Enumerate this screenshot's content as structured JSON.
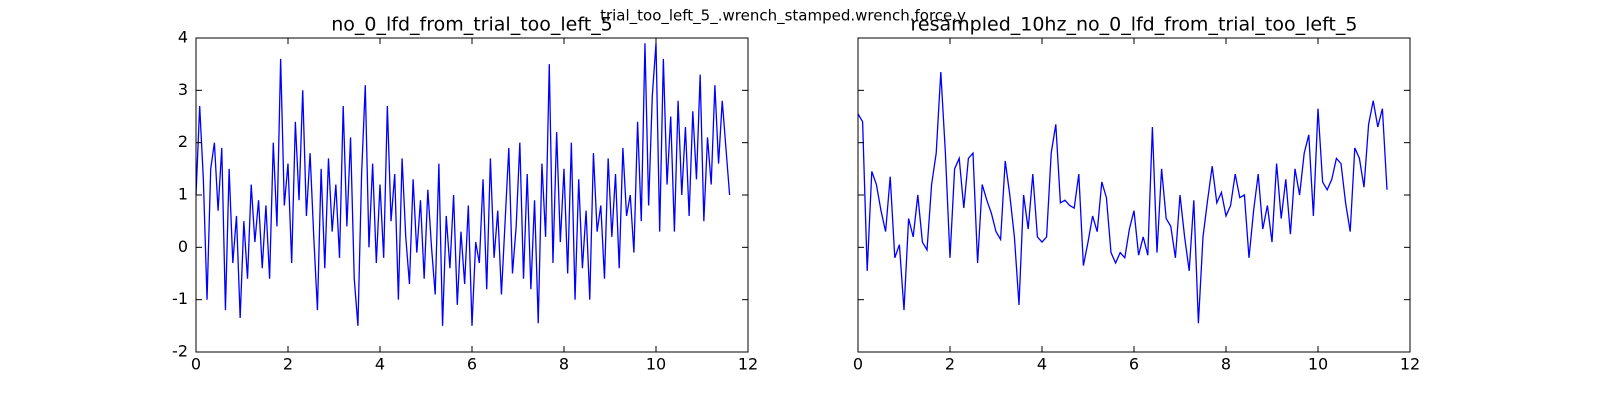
{
  "suptitle": "trial_too_left_5_.wrench_stamped.wrench.force.y",
  "chart_data": [
    {
      "type": "line",
      "title": "no_0_lfd_from_trial_too_left_5",
      "x": [
        0,
        0.08,
        0.16,
        0.24,
        0.32,
        0.4,
        0.48,
        0.56,
        0.64,
        0.72,
        0.8,
        0.88,
        0.96,
        1.04,
        1.12,
        1.2,
        1.28,
        1.36,
        1.44,
        1.52,
        1.6,
        1.68,
        1.76,
        1.84,
        1.92,
        2.0,
        2.08,
        2.16,
        2.24,
        2.32,
        2.4,
        2.48,
        2.56,
        2.64,
        2.72,
        2.8,
        2.88,
        2.96,
        3.04,
        3.12,
        3.2,
        3.28,
        3.36,
        3.44,
        3.52,
        3.6,
        3.68,
        3.76,
        3.84,
        3.92,
        4.0,
        4.08,
        4.16,
        4.24,
        4.32,
        4.4,
        4.48,
        4.56,
        4.64,
        4.72,
        4.8,
        4.88,
        4.96,
        5.04,
        5.12,
        5.2,
        5.28,
        5.36,
        5.44,
        5.52,
        5.6,
        5.68,
        5.76,
        5.84,
        5.92,
        6.0,
        6.08,
        6.16,
        6.24,
        6.32,
        6.4,
        6.48,
        6.56,
        6.64,
        6.72,
        6.8,
        6.88,
        6.96,
        7.04,
        7.12,
        7.2,
        7.28,
        7.36,
        7.44,
        7.52,
        7.6,
        7.68,
        7.76,
        7.84,
        7.92,
        8.0,
        8.08,
        8.16,
        8.24,
        8.32,
        8.4,
        8.48,
        8.56,
        8.64,
        8.72,
        8.8,
        8.88,
        8.96,
        9.04,
        9.12,
        9.2,
        9.28,
        9.36,
        9.44,
        9.52,
        9.6,
        9.68,
        9.76,
        9.84,
        9.92,
        10.0,
        10.08,
        10.16,
        10.24,
        10.32,
        10.4,
        10.48,
        10.56,
        10.64,
        10.72,
        10.8,
        10.88,
        10.96,
        11.04,
        11.12,
        11.2,
        11.28,
        11.36,
        11.44,
        11.52,
        11.6
      ],
      "series": [
        {
          "color": "#0000ff",
          "values": [
            1.0,
            2.7,
            1.3,
            -1.0,
            1.5,
            2.0,
            0.7,
            1.9,
            -1.2,
            1.5,
            -0.3,
            0.6,
            -1.35,
            0.5,
            -0.6,
            1.2,
            0.1,
            0.9,
            -0.4,
            0.8,
            -0.6,
            2.0,
            0.4,
            3.6,
            0.8,
            1.6,
            -0.3,
            2.4,
            0.9,
            3.0,
            0.6,
            1.8,
            0.2,
            -1.2,
            1.5,
            -0.4,
            1.7,
            0.3,
            1.2,
            -0.2,
            2.7,
            0.4,
            2.1,
            -0.6,
            -1.5,
            1.4,
            3.1,
            0.0,
            1.6,
            -0.3,
            1.2,
            -0.2,
            2.7,
            0.5,
            1.4,
            -1.0,
            1.7,
            0.2,
            -0.7,
            1.3,
            -0.1,
            0.9,
            -0.6,
            1.1,
            0.0,
            -0.9,
            1.6,
            -1.5,
            0.6,
            -0.4,
            1.0,
            -1.1,
            0.3,
            -0.7,
            0.8,
            -1.5,
            0.1,
            -0.3,
            1.3,
            -0.8,
            1.7,
            -0.2,
            0.7,
            -0.9,
            0.5,
            1.9,
            -0.5,
            0.4,
            2.0,
            -0.6,
            1.4,
            -0.8,
            0.9,
            -1.45,
            1.6,
            0.2,
            3.5,
            -0.3,
            2.2,
            0.1,
            1.5,
            -0.5,
            2.0,
            -1.0,
            1.3,
            -0.4,
            0.7,
            -1.0,
            1.8,
            0.3,
            0.8,
            -0.6,
            1.7,
            0.2,
            1.4,
            -0.4,
            1.9,
            0.6,
            1.0,
            -0.1,
            2.4,
            0.5,
            3.9,
            0.8,
            2.9,
            3.9,
            0.3,
            3.6,
            1.2,
            2.5,
            0.3,
            2.8,
            1.0,
            2.3,
            0.6,
            2.6,
            1.3,
            3.3,
            0.5,
            2.1,
            1.2,
            3.1,
            1.6,
            2.8,
            1.9,
            1.0
          ]
        }
      ],
      "xlim": [
        0,
        12
      ],
      "xticks": [
        0,
        2,
        4,
        6,
        8,
        10,
        12
      ],
      "ylim": [
        -2,
        4
      ],
      "yticks": [
        -2,
        -1,
        0,
        1,
        2,
        3,
        4
      ],
      "ytick_labels": true
    },
    {
      "type": "line",
      "title": "resampled_10hz_no_0_lfd_from_trial_too_left_5",
      "x": [
        0,
        0.1,
        0.2,
        0.3,
        0.4,
        0.5,
        0.6,
        0.7,
        0.8,
        0.9,
        1.0,
        1.1,
        1.2,
        1.3,
        1.4,
        1.5,
        1.6,
        1.7,
        1.8,
        1.9,
        2.0,
        2.1,
        2.2,
        2.3,
        2.4,
        2.5,
        2.6,
        2.7,
        2.8,
        2.9,
        3.0,
        3.1,
        3.2,
        3.3,
        3.4,
        3.5,
        3.6,
        3.7,
        3.8,
        3.9,
        4.0,
        4.1,
        4.2,
        4.3,
        4.4,
        4.5,
        4.6,
        4.7,
        4.8,
        4.9,
        5.0,
        5.1,
        5.2,
        5.3,
        5.4,
        5.5,
        5.6,
        5.7,
        5.8,
        5.9,
        6.0,
        6.1,
        6.2,
        6.3,
        6.4,
        6.5,
        6.6,
        6.7,
        6.8,
        6.9,
        7.0,
        7.1,
        7.2,
        7.3,
        7.4,
        7.5,
        7.6,
        7.7,
        7.8,
        7.9,
        8.0,
        8.1,
        8.2,
        8.3,
        8.4,
        8.5,
        8.6,
        8.7,
        8.8,
        8.9,
        9.0,
        9.1,
        9.2,
        9.3,
        9.4,
        9.5,
        9.6,
        9.7,
        9.8,
        9.9,
        10.0,
        10.1,
        10.2,
        10.3,
        10.4,
        10.5,
        10.6,
        10.7,
        10.8,
        10.9,
        11.0,
        11.1,
        11.2,
        11.3,
        11.4,
        11.5
      ],
      "series": [
        {
          "color": "#0000ff",
          "values": [
            2.55,
            2.4,
            -0.45,
            1.45,
            1.2,
            0.7,
            0.3,
            1.35,
            -0.2,
            0.05,
            -1.2,
            0.55,
            0.2,
            1.0,
            0.1,
            -0.05,
            1.2,
            1.8,
            3.35,
            1.8,
            -0.2,
            1.5,
            1.7,
            0.75,
            1.7,
            1.8,
            -0.3,
            1.2,
            0.9,
            0.65,
            0.3,
            0.15,
            1.65,
            1.0,
            0.2,
            -1.1,
            1.0,
            0.35,
            1.4,
            0.2,
            0.1,
            0.2,
            1.8,
            2.35,
            0.85,
            0.9,
            0.8,
            0.75,
            1.4,
            -0.35,
            0.1,
            0.6,
            0.3,
            1.25,
            0.95,
            -0.1,
            -0.3,
            -0.1,
            -0.2,
            0.35,
            0.7,
            -0.15,
            0.2,
            -0.15,
            2.3,
            -0.1,
            1.5,
            0.55,
            0.4,
            -0.2,
            1.0,
            0.2,
            -0.45,
            0.9,
            -1.45,
            0.2,
            0.9,
            1.55,
            0.85,
            1.05,
            0.6,
            0.8,
            1.4,
            0.95,
            1.0,
            -0.2,
            0.7,
            1.4,
            0.35,
            0.8,
            0.1,
            1.6,
            0.55,
            1.3,
            0.25,
            1.5,
            1.0,
            1.8,
            2.15,
            0.6,
            2.65,
            1.25,
            1.1,
            1.3,
            1.7,
            1.6,
            0.85,
            0.3,
            1.9,
            1.7,
            1.15,
            2.35,
            2.8,
            2.3,
            2.65,
            1.1
          ]
        }
      ],
      "xlim": [
        0,
        12
      ],
      "xticks": [
        0,
        2,
        4,
        6,
        8,
        10,
        12
      ],
      "ylim": [
        -2,
        4
      ],
      "yticks": [
        -2,
        -1,
        0,
        1,
        2,
        3,
        4
      ],
      "ytick_labels": false
    }
  ]
}
